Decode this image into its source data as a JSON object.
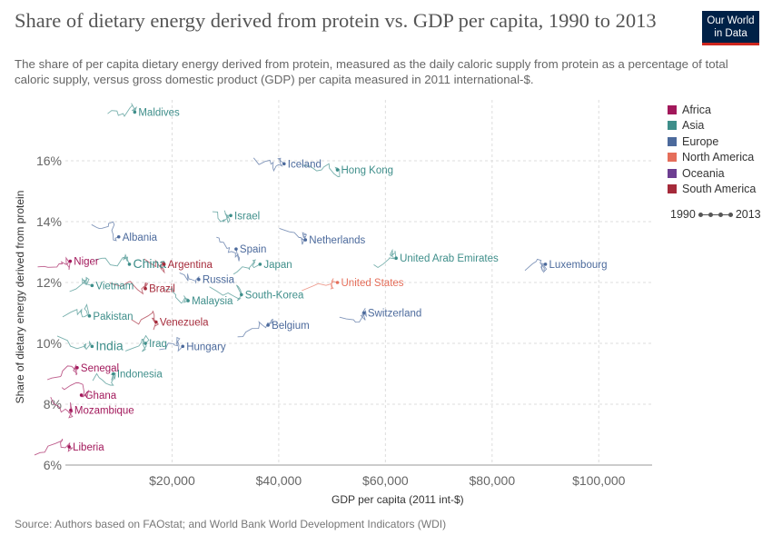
{
  "header": {
    "title": "Share of dietary energy derived from protein vs. GDP per capita, 1990 to 2013",
    "subtitle": "The share of per capita dietary energy derived from protein, measured as the daily caloric supply from protein as a percentage of total caloric supply, versus gross domestic product (GDP) per capita measured in 2011 international-$.",
    "logo_line1": "Our World",
    "logo_line2": "in Data"
  },
  "footer": {
    "source": "Source: Authors based on FAOstat; and World Bank World Development Indicators (WDI)"
  },
  "timeline": {
    "start": "1990",
    "end": "2013"
  },
  "chart_data": {
    "type": "scatter",
    "xlabel": "GDP per capita (2011 int-$)",
    "ylabel": "Share of dietary energy derived from protein",
    "xlim": [
      0,
      110000
    ],
    "ylim": [
      6,
      18
    ],
    "x_ticks": [
      {
        "value": 20000,
        "label": "$20,000"
      },
      {
        "value": 40000,
        "label": "$40,000"
      },
      {
        "value": 60000,
        "label": "$60,000"
      },
      {
        "value": 80000,
        "label": "$80,000"
      },
      {
        "value": 100000,
        "label": "$100,000"
      }
    ],
    "y_ticks": [
      {
        "value": 6,
        "label": "6%"
      },
      {
        "value": 8,
        "label": "8%"
      },
      {
        "value": 10,
        "label": "10%"
      },
      {
        "value": 12,
        "label": "12%"
      },
      {
        "value": 14,
        "label": "14%"
      },
      {
        "value": 16,
        "label": "16%"
      }
    ],
    "grid": true,
    "legend_position": "right",
    "legend": [
      {
        "name": "Africa",
        "color": "#a2185b"
      },
      {
        "name": "Asia",
        "color": "#3e8e8a"
      },
      {
        "name": "Europe",
        "color": "#4c6a9c"
      },
      {
        "name": "North America",
        "color": "#e56e5a"
      },
      {
        "name": "Oceania",
        "color": "#6d3e91"
      },
      {
        "name": "South America",
        "color": "#a52a3a"
      }
    ],
    "labeled_points": [
      {
        "label": "Maldives",
        "region": "Asia",
        "x": 13000,
        "y": 17.6
      },
      {
        "label": "Iceland",
        "region": "Europe",
        "x": 41000,
        "y": 15.9
      },
      {
        "label": "Hong Kong",
        "region": "Asia",
        "x": 51000,
        "y": 15.7
      },
      {
        "label": "Israel",
        "region": "Asia",
        "x": 31000,
        "y": 14.2
      },
      {
        "label": "Albania",
        "region": "Europe",
        "x": 10000,
        "y": 13.5
      },
      {
        "label": "Spain",
        "region": "Europe",
        "x": 32000,
        "y": 13.1
      },
      {
        "label": "Netherlands",
        "region": "Europe",
        "x": 45000,
        "y": 13.4
      },
      {
        "label": "United Arab Emirates",
        "region": "Asia",
        "x": 62000,
        "y": 12.8
      },
      {
        "label": "Luxembourg",
        "region": "Europe",
        "x": 90000,
        "y": 12.6
      },
      {
        "label": "Niger",
        "region": "Africa",
        "x": 900,
        "y": 12.7
      },
      {
        "label": "China",
        "region": "Asia",
        "x": 12000,
        "y": 12.6
      },
      {
        "label": "Argentina",
        "region": "South America",
        "x": 18500,
        "y": 12.6
      },
      {
        "label": "Russia",
        "region": "Europe",
        "x": 25000,
        "y": 12.1
      },
      {
        "label": "Japan",
        "region": "Asia",
        "x": 36500,
        "y": 12.6
      },
      {
        "label": "United States",
        "region": "North America",
        "x": 51000,
        "y": 12.0
      },
      {
        "label": "Vietnam",
        "region": "Asia",
        "x": 5000,
        "y": 11.9
      },
      {
        "label": "Brazil",
        "region": "South America",
        "x": 15000,
        "y": 11.8
      },
      {
        "label": "South-Korea",
        "region": "Asia",
        "x": 33000,
        "y": 11.6
      },
      {
        "label": "Malaysia",
        "region": "Asia",
        "x": 23000,
        "y": 11.4
      },
      {
        "label": "Switzerland",
        "region": "Europe",
        "x": 56000,
        "y": 11.0
      },
      {
        "label": "Pakistan",
        "region": "Asia",
        "x": 4500,
        "y": 10.9
      },
      {
        "label": "Venezuela",
        "region": "South America",
        "x": 17000,
        "y": 10.7
      },
      {
        "label": "Belgium",
        "region": "Europe",
        "x": 38000,
        "y": 10.6
      },
      {
        "label": "Iraq",
        "region": "Asia",
        "x": 15000,
        "y": 10.0
      },
      {
        "label": "Hungary",
        "region": "Europe",
        "x": 22000,
        "y": 9.9
      },
      {
        "label": "India",
        "region": "Asia",
        "x": 5000,
        "y": 9.9
      },
      {
        "label": "Senegal",
        "region": "Africa",
        "x": 2200,
        "y": 9.2
      },
      {
        "label": "Indonesia",
        "region": "Asia",
        "x": 9000,
        "y": 9.0
      },
      {
        "label": "Ghana",
        "region": "Africa",
        "x": 3000,
        "y": 8.3
      },
      {
        "label": "Mozambique",
        "region": "Africa",
        "x": 1000,
        "y": 7.8
      },
      {
        "label": "Liberia",
        "region": "Africa",
        "x": 700,
        "y": 6.6
      }
    ]
  }
}
